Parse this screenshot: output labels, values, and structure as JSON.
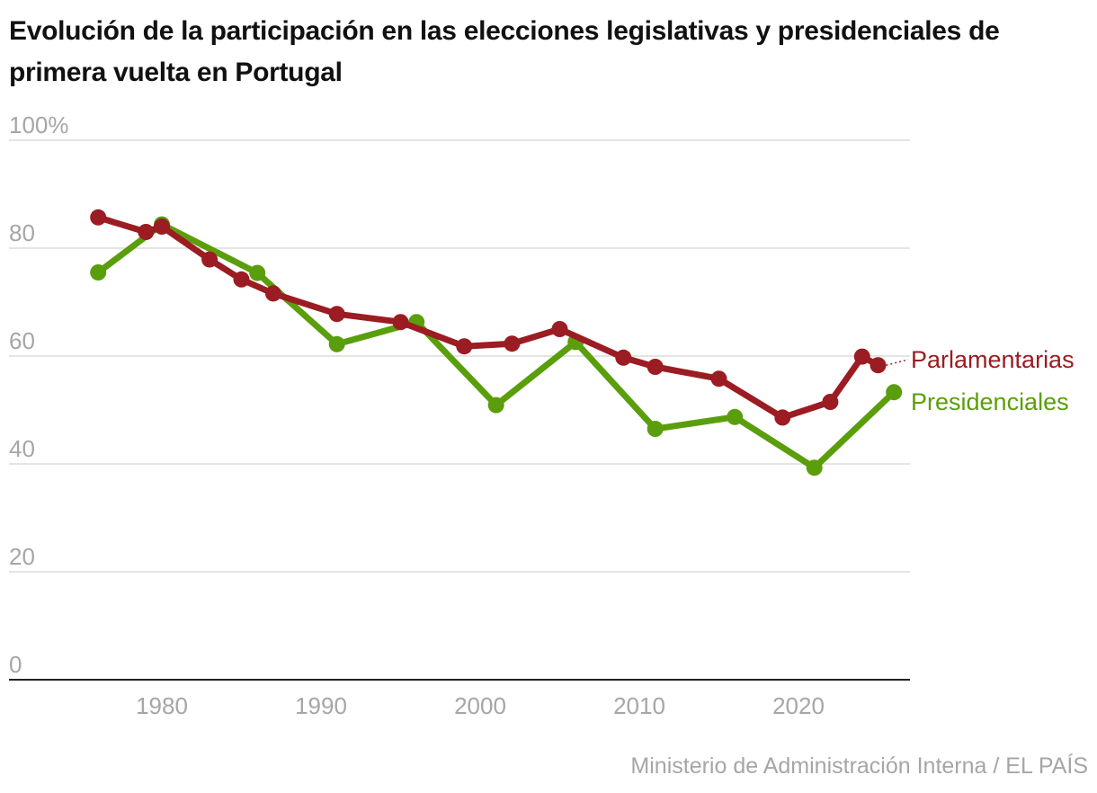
{
  "chart_data": {
    "type": "line",
    "title": "Evolución de la participación en las elecciones legislativas y presidenciales de primera vuelta en Portugal",
    "ylim": [
      0,
      100
    ],
    "xlim": [
      1971.9,
      2027
    ],
    "yticks": [
      {
        "value": 100,
        "label": "100%"
      },
      {
        "value": 80,
        "label": "80"
      },
      {
        "value": 60,
        "label": "60"
      },
      {
        "value": 40,
        "label": "40"
      },
      {
        "value": 20,
        "label": "20"
      },
      {
        "value": 0,
        "label": "0"
      }
    ],
    "xticks": [
      {
        "value": 1980,
        "label": "1980"
      },
      {
        "value": 1990,
        "label": "1990"
      },
      {
        "value": 2000,
        "label": "2000"
      },
      {
        "value": 2010,
        "label": "2010"
      },
      {
        "value": 2020,
        "label": "2020"
      }
    ],
    "series": [
      {
        "name": "Presidenciales",
        "color": "#5a9e0c",
        "x": [
          1976,
          1980,
          1986,
          1991,
          1996,
          2001,
          2006,
          2011,
          2016,
          2021,
          2026
        ],
        "values": [
          75.5,
          84.4,
          75.4,
          62.2,
          66.3,
          50.9,
          62.6,
          46.5,
          48.7,
          39.3,
          53.3
        ]
      },
      {
        "name": "Parlamentarias",
        "color": "#9b1c22",
        "x": [
          1976,
          1979,
          1980,
          1983,
          1985,
          1987,
          1991,
          1995,
          1999,
          2002,
          2005,
          2009,
          2011,
          2015,
          2019,
          2022,
          2024,
          2025
        ],
        "values": [
          85.7,
          83.0,
          84.0,
          77.9,
          74.2,
          71.6,
          67.8,
          66.3,
          61.8,
          62.3,
          65.0,
          59.7,
          58.0,
          55.8,
          48.6,
          51.5,
          59.9,
          58.3
        ]
      }
    ],
    "source": "Ministerio de Administración Interna / EL PAÍS"
  }
}
